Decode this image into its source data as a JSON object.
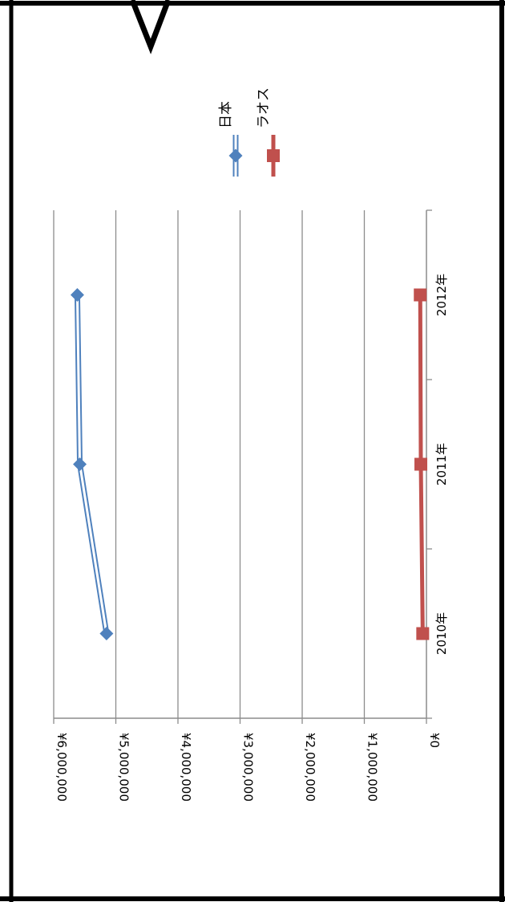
{
  "chart_data": {
    "type": "line",
    "orientation": "rotated-90-clockwise",
    "categories": [
      "2010年",
      "2011年",
      "2012年"
    ],
    "series": [
      {
        "name": "日本",
        "values": [
          5150000,
          5580000,
          5620000
        ],
        "color": "#4F81BD",
        "marker": "diamond"
      },
      {
        "name": "ラオス",
        "values": [
          60000,
          90000,
          100000
        ],
        "color": "#C0504D",
        "marker": "square"
      }
    ],
    "ylim": [
      0,
      6000000
    ],
    "y_ticks": [
      "¥0",
      "¥1,000,000",
      "¥2,000,000",
      "¥3,000,000",
      "¥4,000,000",
      "¥5,000,000",
      "¥6,000,000"
    ],
    "grid": true,
    "legend_position": "top-right"
  }
}
